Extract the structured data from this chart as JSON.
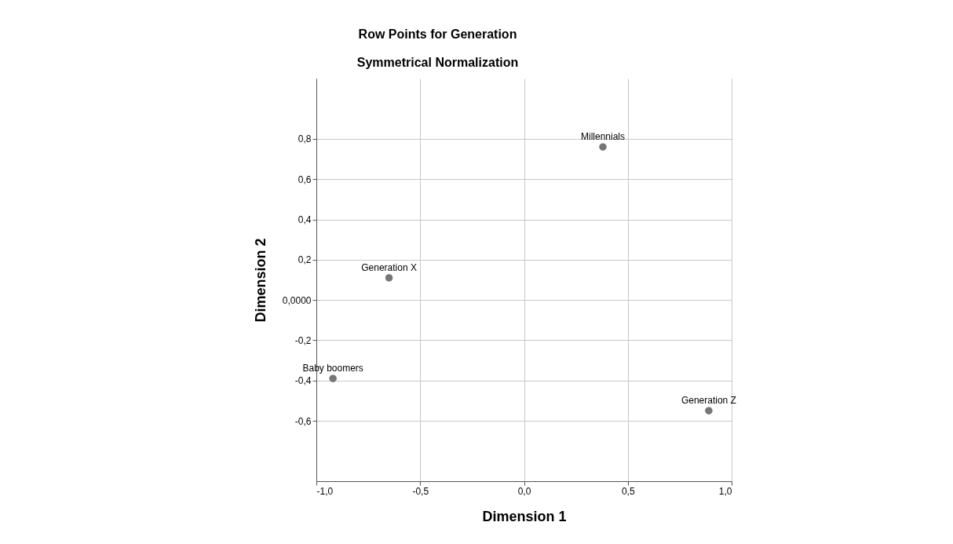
{
  "chart_data": {
    "type": "scatter",
    "title": "Row Points for Generation",
    "subtitle": "Symmetrical Normalization",
    "xlabel": "Dimension 1",
    "ylabel": "Dimension 2",
    "x": [
      0.38,
      -0.65,
      -0.92,
      0.89
    ],
    "values": [
      0.76,
      0.11,
      -0.39,
      -0.55
    ],
    "color": "#767676",
    "marker": "circle",
    "grid": true,
    "xlim": [
      -1,
      1
    ],
    "ylim": [
      -0.9,
      1.1
    ],
    "xticks": [
      {
        "value": -1,
        "label": "-1,0"
      },
      {
        "value": -0.5,
        "label": "-0,5"
      },
      {
        "value": 0,
        "label": "0,0"
      },
      {
        "value": 0.5,
        "label": "0,5"
      },
      {
        "value": 1,
        "label": "1,0"
      }
    ],
    "yticks": [
      {
        "value": -0.6,
        "label": "-0,6"
      },
      {
        "value": -0.4,
        "label": "-0,4"
      },
      {
        "value": -0.2,
        "label": "-0,2"
      },
      {
        "value": 0,
        "label": "0,0000"
      },
      {
        "value": 0.2,
        "label": "0,2"
      },
      {
        "value": 0.4,
        "label": "0,4"
      },
      {
        "value": 0.6,
        "label": "0,6"
      },
      {
        "value": 0.8,
        "label": "0,8"
      }
    ],
    "annotations": [
      {
        "text": "Millennials",
        "x": 0.38,
        "y": 0.76
      },
      {
        "text": "Generation X",
        "x": -0.65,
        "y": 0.11
      },
      {
        "text": "Baby boomers",
        "x": -0.92,
        "y": -0.39
      },
      {
        "text": "Generation Z",
        "x": 0.89,
        "y": -0.55
      }
    ]
  }
}
